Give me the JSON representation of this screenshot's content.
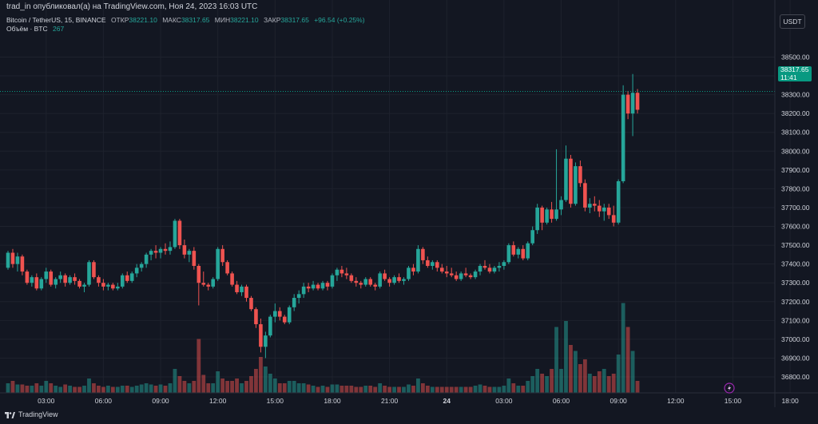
{
  "header": {
    "text": "trad_in опубликовал(а) на TradingView.com, Ноя 24, 2023 16:03 UTC"
  },
  "legend": {
    "symbol": "Bitcoin / TetherUS, 15, BINANCE",
    "open_label": "ОТКР",
    "open_value": "38221.10",
    "high_label": "МАКС",
    "high_value": "38317.65",
    "low_label": "МИН",
    "low_value": "38221.10",
    "close_label": "ЗАКР",
    "close_value": "38317.65",
    "change": "+96.54 (+0.25%)",
    "volume_label": "Объём · BTC",
    "volume_value": "267"
  },
  "currency_button": "USDT",
  "price_tag": {
    "price": "38317.65",
    "countdown": "11:41"
  },
  "footer": {
    "brand": "TradingView"
  },
  "colors": {
    "up": "#26a69a",
    "down": "#ef5350",
    "background": "#131722",
    "grid": "#1e222d",
    "price_tag": "#089981"
  },
  "icons": [
    "lightning-icon",
    "tradingview-logo-icon"
  ],
  "chart_data": {
    "type": "candlestick",
    "price_axis": {
      "ticks": [
        36800,
        36900,
        37000,
        37100,
        37200,
        37300,
        37400,
        37500,
        37600,
        37700,
        37800,
        37900,
        38000,
        38100,
        38200,
        38300,
        38400,
        38500
      ],
      "labels": [
        "36800.00",
        "36900.00",
        "37000.00",
        "37100.00",
        "37200.00",
        "37300.00",
        "37400.00",
        "37500.00",
        "37600.00",
        "37700.00",
        "37800.00",
        "37900.00",
        "38000.00",
        "38100.00",
        "38200.00",
        "38300.00",
        "38400.00",
        "38500.00"
      ]
    },
    "time_axis": {
      "labels": [
        "03:00",
        "06:00",
        "09:00",
        "12:00",
        "15:00",
        "18:00",
        "21:00",
        "24",
        "03:00",
        "06:00",
        "09:00",
        "12:00",
        "15:00",
        "18:00"
      ],
      "bar_index": [
        8,
        20,
        32,
        44,
        56,
        68,
        80,
        92,
        104,
        116,
        128,
        140,
        152,
        164
      ]
    },
    "last_price": 38317.65,
    "ohlc": [
      [
        37380,
        37470,
        37370,
        37460
      ],
      [
        37460,
        37480,
        37380,
        37400
      ],
      [
        37400,
        37460,
        37360,
        37440
      ],
      [
        37440,
        37450,
        37340,
        37360
      ],
      [
        37360,
        37370,
        37290,
        37300
      ],
      [
        37300,
        37340,
        37280,
        37330
      ],
      [
        37330,
        37350,
        37260,
        37270
      ],
      [
        37270,
        37330,
        37260,
        37320
      ],
      [
        37320,
        37380,
        37300,
        37360
      ],
      [
        37360,
        37370,
        37280,
        37290
      ],
      [
        37290,
        37330,
        37270,
        37320
      ],
      [
        37320,
        37360,
        37300,
        37340
      ],
      [
        37340,
        37350,
        37280,
        37300
      ],
      [
        37300,
        37340,
        37290,
        37330
      ],
      [
        37330,
        37350,
        37290,
        37310
      ],
      [
        37310,
        37320,
        37270,
        37280
      ],
      [
        37280,
        37300,
        37250,
        37290
      ],
      [
        37290,
        37420,
        37280,
        37410
      ],
      [
        37410,
        37420,
        37320,
        37330
      ],
      [
        37330,
        37340,
        37280,
        37300
      ],
      [
        37300,
        37320,
        37260,
        37280
      ],
      [
        37280,
        37300,
        37260,
        37290
      ],
      [
        37290,
        37300,
        37260,
        37270
      ],
      [
        37270,
        37300,
        37260,
        37280
      ],
      [
        37280,
        37350,
        37270,
        37340
      ],
      [
        37340,
        37360,
        37300,
        37310
      ],
      [
        37310,
        37360,
        37300,
        37350
      ],
      [
        37350,
        37400,
        37330,
        37380
      ],
      [
        37380,
        37410,
        37360,
        37400
      ],
      [
        37400,
        37460,
        37380,
        37450
      ],
      [
        37450,
        37480,
        37420,
        37470
      ],
      [
        37470,
        37500,
        37430,
        37460
      ],
      [
        37460,
        37490,
        37430,
        37480
      ],
      [
        37480,
        37510,
        37450,
        37470
      ],
      [
        37470,
        37520,
        37450,
        37490
      ],
      [
        37490,
        37640,
        37480,
        37630
      ],
      [
        37630,
        37640,
        37480,
        37500
      ],
      [
        37500,
        37530,
        37430,
        37450
      ],
      [
        37450,
        37480,
        37410,
        37470
      ],
      [
        37470,
        37490,
        37370,
        37390
      ],
      [
        37390,
        37400,
        37180,
        37300
      ],
      [
        37300,
        37360,
        37280,
        37290
      ],
      [
        37290,
        37300,
        37260,
        37280
      ],
      [
        37280,
        37330,
        37270,
        37320
      ],
      [
        37320,
        37490,
        37310,
        37480
      ],
      [
        37480,
        37500,
        37390,
        37410
      ],
      [
        37410,
        37420,
        37340,
        37350
      ],
      [
        37350,
        37360,
        37280,
        37290
      ],
      [
        37290,
        37310,
        37240,
        37250
      ],
      [
        37250,
        37290,
        37230,
        37280
      ],
      [
        37280,
        37290,
        37200,
        37220
      ],
      [
        37220,
        37230,
        37150,
        37160
      ],
      [
        37160,
        37170,
        37060,
        37080
      ],
      [
        37080,
        37110,
        36930,
        36960
      ],
      [
        36960,
        37040,
        36900,
        37020
      ],
      [
        37020,
        37130,
        37010,
        37120
      ],
      [
        37120,
        37190,
        37090,
        37150
      ],
      [
        37150,
        37170,
        37100,
        37120
      ],
      [
        37120,
        37130,
        37080,
        37090
      ],
      [
        37090,
        37180,
        37080,
        37170
      ],
      [
        37170,
        37240,
        37150,
        37220
      ],
      [
        37220,
        37260,
        37190,
        37240
      ],
      [
        37240,
        37300,
        37220,
        37280
      ],
      [
        37280,
        37300,
        37250,
        37270
      ],
      [
        37270,
        37310,
        37260,
        37290
      ],
      [
        37290,
        37300,
        37260,
        37270
      ],
      [
        37270,
        37310,
        37260,
        37300
      ],
      [
        37300,
        37310,
        37260,
        37280
      ],
      [
        37280,
        37350,
        37270,
        37340
      ],
      [
        37340,
        37380,
        37310,
        37370
      ],
      [
        37370,
        37390,
        37330,
        37350
      ],
      [
        37350,
        37380,
        37320,
        37340
      ],
      [
        37340,
        37350,
        37300,
        37310
      ],
      [
        37310,
        37330,
        37280,
        37300
      ],
      [
        37300,
        37310,
        37270,
        37290
      ],
      [
        37290,
        37330,
        37280,
        37320
      ],
      [
        37320,
        37330,
        37280,
        37290
      ],
      [
        37290,
        37300,
        37260,
        37280
      ],
      [
        37280,
        37360,
        37270,
        37350
      ],
      [
        37350,
        37370,
        37310,
        37320
      ],
      [
        37320,
        37330,
        37280,
        37300
      ],
      [
        37300,
        37340,
        37290,
        37330
      ],
      [
        37330,
        37350,
        37300,
        37310
      ],
      [
        37310,
        37330,
        37290,
        37320
      ],
      [
        37320,
        37390,
        37310,
        37380
      ],
      [
        37380,
        37400,
        37340,
        37360
      ],
      [
        37360,
        37500,
        37350,
        37480
      ],
      [
        37480,
        37490,
        37400,
        37420
      ],
      [
        37420,
        37440,
        37380,
        37390
      ],
      [
        37390,
        37420,
        37370,
        37410
      ],
      [
        37410,
        37420,
        37360,
        37380
      ],
      [
        37380,
        37400,
        37350,
        37360
      ],
      [
        37360,
        37390,
        37330,
        37350
      ],
      [
        37350,
        37380,
        37330,
        37340
      ],
      [
        37340,
        37360,
        37310,
        37320
      ],
      [
        37320,
        37360,
        37310,
        37350
      ],
      [
        37350,
        37380,
        37330,
        37340
      ],
      [
        37340,
        37350,
        37320,
        37330
      ],
      [
        37330,
        37370,
        37320,
        37360
      ],
      [
        37360,
        37400,
        37340,
        37390
      ],
      [
        37390,
        37420,
        37370,
        37380
      ],
      [
        37380,
        37400,
        37350,
        37360
      ],
      [
        37360,
        37390,
        37350,
        37380
      ],
      [
        37380,
        37410,
        37360,
        37390
      ],
      [
        37390,
        37420,
        37370,
        37410
      ],
      [
        37410,
        37510,
        37400,
        37500
      ],
      [
        37500,
        37520,
        37440,
        37450
      ],
      [
        37450,
        37490,
        37430,
        37480
      ],
      [
        37480,
        37500,
        37420,
        37430
      ],
      [
        37430,
        37520,
        37420,
        37510
      ],
      [
        37510,
        37600,
        37500,
        37580
      ],
      [
        37580,
        37720,
        37560,
        37700
      ],
      [
        37700,
        37710,
        37580,
        37620
      ],
      [
        37620,
        37700,
        37610,
        37690
      ],
      [
        37690,
        37730,
        37620,
        37640
      ],
      [
        37640,
        38010,
        37630,
        37690
      ],
      [
        37690,
        37760,
        37660,
        37740
      ],
      [
        37740,
        38030,
        37730,
        37960
      ],
      [
        37960,
        37980,
        37700,
        37720
      ],
      [
        37720,
        37940,
        37710,
        37920
      ],
      [
        37920,
        37950,
        37810,
        37830
      ],
      [
        37830,
        37850,
        37680,
        37700
      ],
      [
        37700,
        37750,
        37670,
        37720
      ],
      [
        37720,
        37760,
        37680,
        37710
      ],
      [
        37710,
        37740,
        37650,
        37680
      ],
      [
        37680,
        37720,
        37630,
        37700
      ],
      [
        37700,
        37720,
        37640,
        37660
      ],
      [
        37660,
        37710,
        37600,
        37620
      ],
      [
        37620,
        37850,
        37610,
        37840
      ],
      [
        37840,
        38350,
        37830,
        38300
      ],
      [
        38300,
        38320,
        38170,
        38200
      ],
      [
        38200,
        38410,
        38080,
        38310
      ],
      [
        38310,
        38330,
        38200,
        38220
      ]
    ],
    "volume": [
      0.08,
      0.1,
      0.07,
      0.07,
      0.06,
      0.06,
      0.08,
      0.06,
      0.1,
      0.08,
      0.06,
      0.05,
      0.07,
      0.06,
      0.05,
      0.05,
      0.06,
      0.12,
      0.08,
      0.06,
      0.05,
      0.06,
      0.05,
      0.05,
      0.06,
      0.06,
      0.05,
      0.06,
      0.07,
      0.08,
      0.07,
      0.06,
      0.07,
      0.06,
      0.08,
      0.2,
      0.14,
      0.1,
      0.08,
      0.1,
      0.45,
      0.15,
      0.08,
      0.08,
      0.18,
      0.12,
      0.1,
      0.1,
      0.12,
      0.08,
      0.1,
      0.14,
      0.2,
      0.3,
      0.22,
      0.16,
      0.12,
      0.08,
      0.08,
      0.1,
      0.1,
      0.08,
      0.08,
      0.07,
      0.06,
      0.05,
      0.06,
      0.05,
      0.07,
      0.07,
      0.06,
      0.06,
      0.06,
      0.05,
      0.05,
      0.06,
      0.06,
      0.05,
      0.08,
      0.06,
      0.05,
      0.05,
      0.05,
      0.05,
      0.07,
      0.06,
      0.12,
      0.08,
      0.06,
      0.05,
      0.05,
      0.05,
      0.05,
      0.05,
      0.05,
      0.05,
      0.05,
      0.05,
      0.06,
      0.07,
      0.06,
      0.05,
      0.05,
      0.05,
      0.06,
      0.12,
      0.08,
      0.06,
      0.06,
      0.1,
      0.14,
      0.2,
      0.16,
      0.14,
      0.2,
      0.55,
      0.2,
      0.6,
      0.4,
      0.35,
      0.24,
      0.28,
      0.16,
      0.14,
      0.18,
      0.2,
      0.14,
      0.16,
      0.32,
      0.75,
      0.55,
      0.35,
      0.1
    ],
    "xlabel": "",
    "ylabel": ""
  }
}
